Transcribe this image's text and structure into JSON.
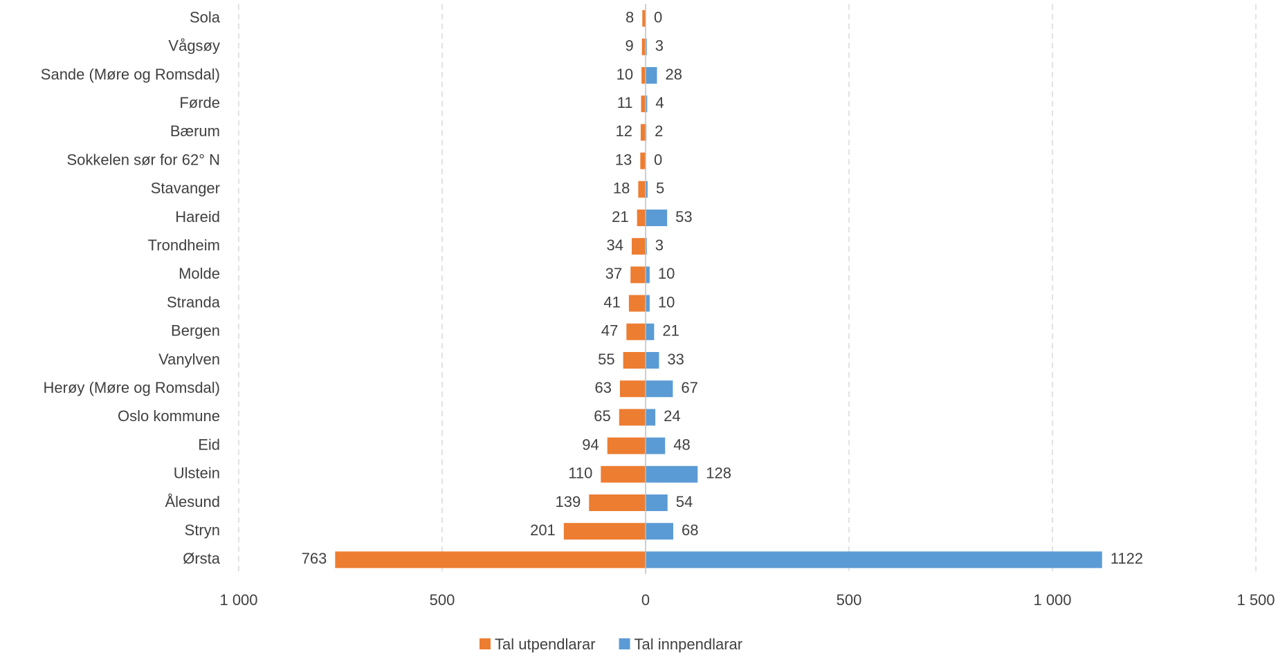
{
  "chart_data": {
    "type": "butterfly_bar",
    "categories": [
      "Sola",
      "Vågsøy",
      "Sande (Møre og Romsdal)",
      "Førde",
      "Bærum",
      "Sokkelen sør for 62° N",
      "Stavanger",
      "Hareid",
      "Trondheim",
      "Molde",
      "Stranda",
      "Bergen",
      "Vanylven",
      "Herøy (Møre og Romsdal)",
      "Oslo kommune",
      "Eid",
      "Ulstein",
      "Ålesund",
      "Stryn",
      "Ørsta"
    ],
    "series": [
      {
        "name": "Tal utpendlarar",
        "color": "#ed7d31",
        "values": [
          -8,
          -9,
          -10,
          -11,
          -12,
          -13,
          -18,
          -21,
          -34,
          -37,
          -41,
          -47,
          -55,
          -63,
          -65,
          -94,
          -110,
          -139,
          -201,
          -763
        ],
        "value_labels": [
          "8",
          "9",
          "10",
          "11",
          "12",
          "13",
          "18",
          "21",
          "34",
          "37",
          "41",
          "47",
          "55",
          "63",
          "65",
          "94",
          "110",
          "139",
          "201",
          "763"
        ]
      },
      {
        "name": "Tal innpendlarar",
        "color": "#5b9bd5",
        "values": [
          0,
          3,
          28,
          4,
          2,
          0,
          5,
          53,
          3,
          10,
          10,
          21,
          33,
          67,
          24,
          48,
          128,
          54,
          68,
          1122
        ]
      }
    ],
    "xlim": [
      -1000,
      1500
    ],
    "xticks": [
      {
        "value": -1000,
        "label": "1 000"
      },
      {
        "value": -500,
        "label": "500"
      },
      0,
      500,
      {
        "value": 1000,
        "label": "1 000"
      },
      {
        "value": 1500,
        "label": "1 500"
      }
    ],
    "grid": true,
    "legend": "bottom"
  }
}
